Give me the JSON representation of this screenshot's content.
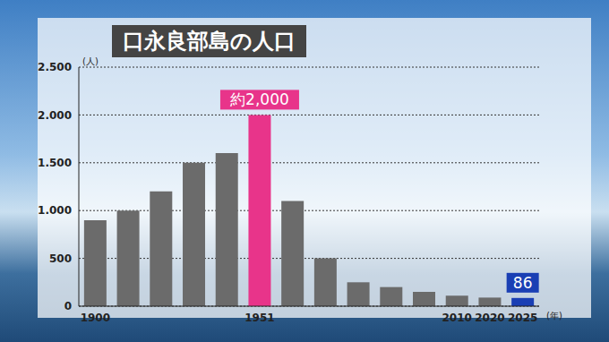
{
  "chart_data": {
    "type": "bar",
    "title": "口永良部島の人口",
    "y_label": "(人)",
    "x_label": "(年)",
    "categories": [
      "1900",
      null,
      null,
      null,
      null,
      "1951",
      null,
      null,
      null,
      null,
      null,
      "2010",
      "2020",
      "2025"
    ],
    "values": [
      900,
      1000,
      1200,
      1500,
      1600,
      2000,
      1100,
      500,
      250,
      200,
      150,
      110,
      90,
      86
    ],
    "colors": [
      "#6b6b6b",
      "#6b6b6b",
      "#6b6b6b",
      "#6b6b6b",
      "#6b6b6b",
      "#e8348a",
      "#6b6b6b",
      "#6b6b6b",
      "#6b6b6b",
      "#6b6b6b",
      "#6b6b6b",
      "#6b6b6b",
      "#6b6b6b",
      "#1a3fb4"
    ],
    "data_labels": true,
    "value_labels": [
      null,
      null,
      null,
      null,
      null,
      "約2,000",
      null,
      null,
      null,
      null,
      null,
      null,
      null,
      "86"
    ],
    "ylim": [
      0,
      2500
    ],
    "yticks": [
      0,
      500,
      {
        "value": 1000,
        "label": "1.000"
      },
      {
        "value": 1500,
        "label": "1.500"
      },
      {
        "value": 2000,
        "label": "2.000"
      },
      {
        "value": 2500,
        "label": "2.500"
      }
    ],
    "grid": true
  }
}
